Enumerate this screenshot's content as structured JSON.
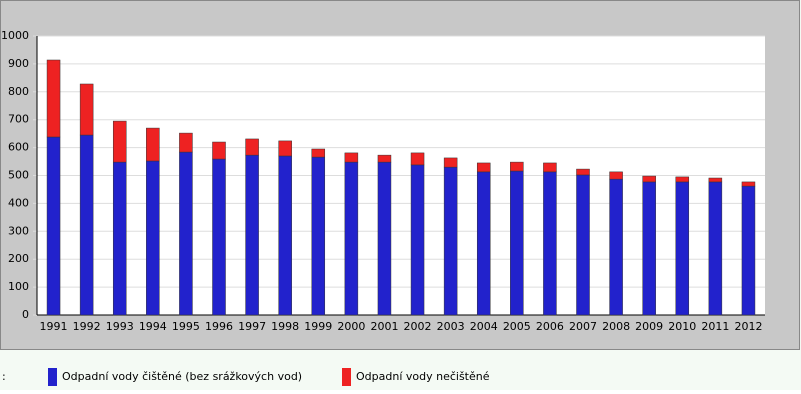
{
  "chart_data": {
    "type": "stacked_bar",
    "legend_prefix": ":",
    "categories": [
      "1991",
      "1992",
      "1993",
      "1994",
      "1995",
      "1996",
      "1997",
      "1998",
      "1999",
      "2000",
      "2001",
      "2002",
      "2003",
      "2004",
      "2005",
      "2006",
      "2007",
      "2008",
      "2009",
      "2010",
      "2011",
      "2012"
    ],
    "series": [
      {
        "name": "Odpadní vody čištěné (bez srážkových vod)",
        "color": "#2222cc",
        "values": [
          638,
          645,
          548,
          552,
          584,
          559,
          573,
          570,
          566,
          548,
          548,
          538,
          530,
          513,
          516,
          513,
          502,
          487,
          477,
          477,
          477,
          462
        ]
      },
      {
        "name": "Odpadní vody nečištěné",
        "color": "#ee2222",
        "values": [
          276,
          183,
          147,
          118,
          68,
          61,
          58,
          54,
          29,
          33,
          25,
          43,
          33,
          32,
          32,
          32,
          21,
          26,
          21,
          18,
          14,
          15
        ]
      }
    ],
    "ylim": [
      0,
      1000
    ],
    "yticks": [
      0,
      100,
      200,
      300,
      400,
      500,
      600,
      700,
      800,
      900,
      1000
    ],
    "grid": true
  }
}
